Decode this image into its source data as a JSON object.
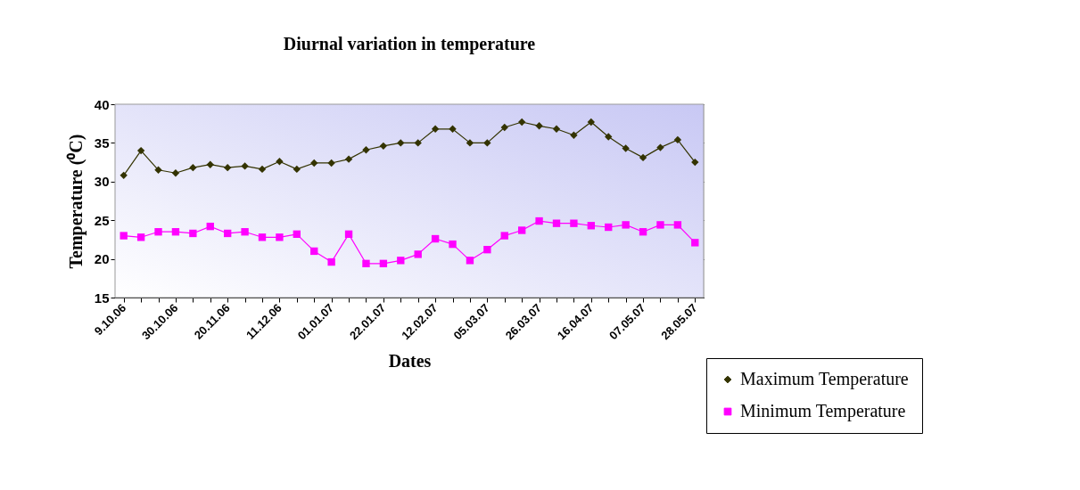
{
  "chart_data": {
    "type": "line",
    "title": "Diurnal variation in temperature",
    "xlabel": "Dates",
    "ylabel": "Temperature (⁰C)",
    "categories": [
      "9.10.06",
      null,
      null,
      "30.10.06",
      null,
      null,
      "20.11.06",
      null,
      null,
      "11.12.06",
      null,
      null,
      "01.01.07",
      null,
      null,
      "22.01.07",
      null,
      null,
      "12.02.07",
      null,
      null,
      "05.03.07",
      null,
      null,
      "26.03.07",
      null,
      null,
      "16.04.07",
      null,
      null,
      "07.05.07",
      null,
      null,
      "28.05.07"
    ],
    "series": [
      {
        "name": "Maximum Temperature",
        "color": "#333300",
        "marker": "diamond",
        "values": [
          30.8,
          34,
          31.5,
          31.1,
          31.8,
          32.2,
          31.8,
          32,
          31.6,
          32.6,
          31.6,
          32.4,
          32.4,
          32.9,
          34.1,
          34.6,
          35,
          35,
          36.8,
          36.8,
          35,
          35,
          37,
          37.7,
          37.2,
          36.8,
          36,
          37.7,
          35.8,
          34.3,
          33.1,
          34.4,
          35.4,
          32.5
        ]
      },
      {
        "name": "Minimum Temperature",
        "color": "#ff00ff",
        "marker": "square",
        "values": [
          23,
          22.8,
          23.5,
          23.5,
          23.3,
          24.2,
          23.3,
          23.5,
          22.8,
          22.8,
          23.2,
          21,
          19.6,
          23.2,
          19.4,
          19.4,
          19.8,
          20.6,
          22.6,
          21.9,
          19.8,
          21.2,
          23,
          23.7,
          24.9,
          24.6,
          24.6,
          24.3,
          24.1,
          24.4,
          23.5,
          24.4,
          24.4,
          22.1
        ]
      }
    ],
    "ylim": [
      15,
      40
    ],
    "yticks": [
      15,
      20,
      25,
      30,
      35,
      40
    ],
    "grid": "y",
    "legend": "bottom right",
    "line_style": "solid"
  }
}
